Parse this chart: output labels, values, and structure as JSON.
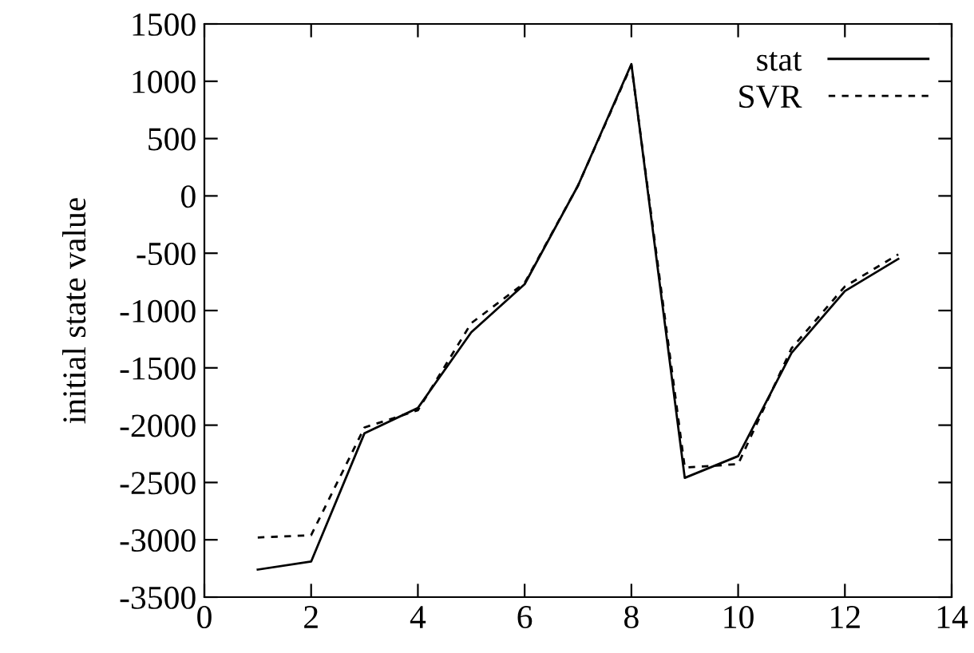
{
  "chart_data": {
    "type": "line",
    "ylabel": "initial state value",
    "x": [
      1,
      2,
      3,
      4,
      5,
      6,
      7,
      8,
      9,
      10,
      11,
      12,
      13
    ],
    "series": [
      {
        "name": "stat",
        "color": "#000000",
        "line_style": "solid",
        "values": [
          -3260,
          -3190,
          -2070,
          -1850,
          -1190,
          -770,
          90,
          1150,
          -2460,
          -2270,
          -1370,
          -830,
          -550
        ]
      },
      {
        "name": "SVR",
        "color": "#000000",
        "line_style": "dashed",
        "values": [
          -2980,
          -2960,
          -2020,
          -1870,
          -1110,
          -760,
          90,
          1140,
          -2370,
          -2340,
          -1330,
          -790,
          -510
        ]
      }
    ],
    "xlim": [
      0,
      14
    ],
    "xticks": [
      0,
      2,
      4,
      6,
      8,
      10,
      12,
      14
    ],
    "ylim": [
      -3500,
      1500
    ],
    "yticks": [
      -3500,
      -3000,
      -2500,
      -2000,
      -1500,
      -1000,
      -500,
      0,
      500,
      1000,
      1500
    ],
    "grid": false,
    "legend": "top right",
    "marker": "none"
  }
}
